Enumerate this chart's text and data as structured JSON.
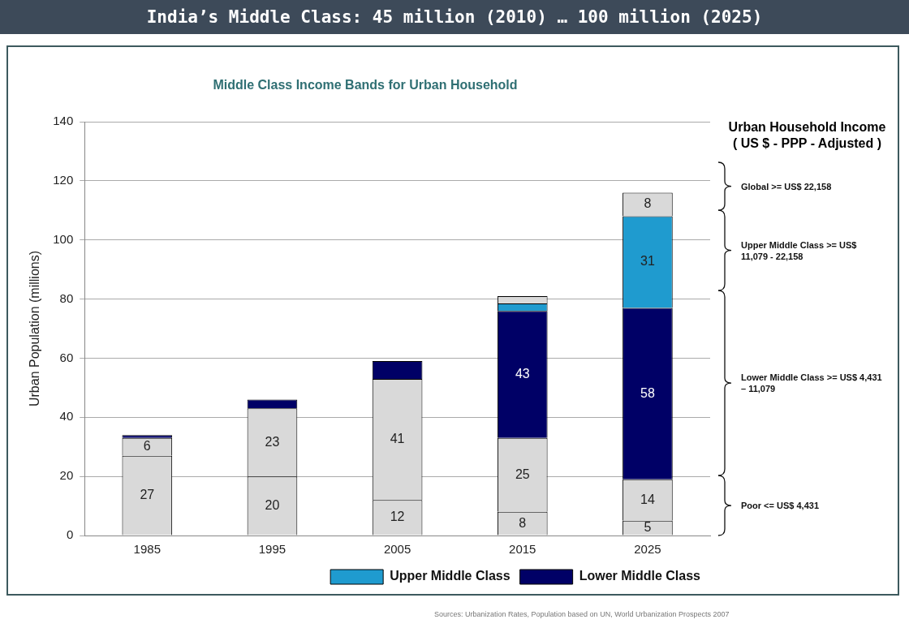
{
  "chart_data": {
    "type": "bar",
    "title": "India’s Middle Class:  45 million (2010) … 100 million (2025)",
    "subtitle": "Middle Class Income Bands for Urban Household",
    "ylabel": "Urban Population (millions)",
    "categories": [
      "1985",
      "1995",
      "2005",
      "2015",
      "2025"
    ],
    "stacked": true,
    "grid": "y",
    "legend": "bottom right",
    "ylim": [
      0,
      140
    ],
    "yticks": [
      0,
      20,
      40,
      60,
      80,
      100,
      120,
      140
    ],
    "series": [
      {
        "color": "#d9d9d9",
        "values": [
          27,
          20,
          12,
          8,
          5
        ],
        "value_labels": [
          "27",
          "20",
          "12",
          "8",
          "5"
        ]
      },
      {
        "color": "#d9d9d9",
        "values": [
          6,
          23,
          41,
          25,
          14
        ],
        "value_labels": [
          "6",
          "23",
          "41",
          "25",
          "14"
        ]
      },
      {
        "name": "Lower Middle Class",
        "color": "#000066",
        "values": [
          1,
          3,
          6,
          43,
          58
        ],
        "value_labels": [
          null,
          null,
          null,
          "43",
          "58"
        ]
      },
      {
        "name": "Upper Middle Class",
        "color": "#1f9bcf",
        "values": [
          0,
          0,
          0,
          2.5,
          31
        ],
        "value_labels": [
          null,
          null,
          null,
          null,
          "31"
        ]
      },
      {
        "color": "#d9d9d9",
        "values": [
          0,
          0,
          0,
          2.5,
          8
        ],
        "value_labels": [
          null,
          null,
          null,
          null,
          "8"
        ]
      }
    ],
    "annotations": [
      "Urban Household Income\n( US $ - PPP - Adjusted )",
      "Global >= US$ 22,158",
      "Upper Middle Class >= US$ 11,079 - 22,158",
      "Lower Middle Class >= US$ 4,431 – 11,079",
      "Poor <= US$ 4,431",
      "Sources: Urbanization Rates, Population based on UN, World Urbanization Prospects 2007"
    ]
  }
}
